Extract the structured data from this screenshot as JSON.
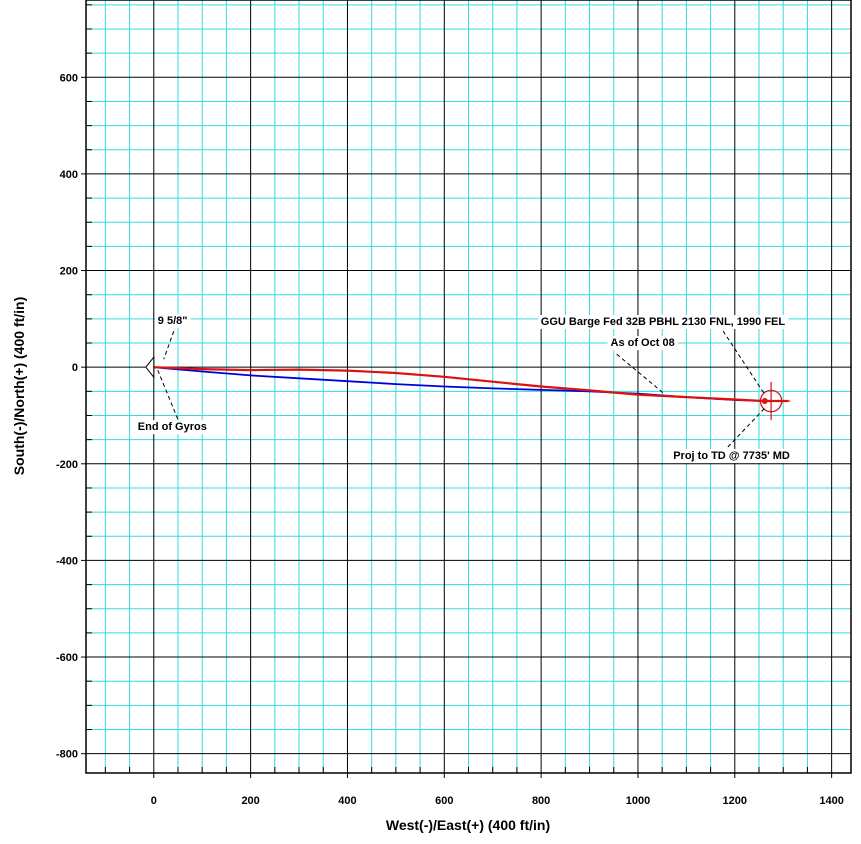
{
  "chart_data": {
    "type": "line",
    "title": "",
    "xlabel": "West(-)/East(+) (400 ft/in)",
    "ylabel": "South(-)/North(+) (400 ft/in)",
    "xlim": [
      -140,
      1440
    ],
    "ylim": [
      -840,
      760
    ],
    "major_step": 200,
    "minor_step": 50,
    "x_ticks": [
      0,
      200,
      400,
      600,
      800,
      1000,
      1200,
      1400
    ],
    "y_ticks": [
      -800,
      -600,
      -400,
      -200,
      0,
      200,
      400,
      600
    ],
    "grid": true,
    "colors": {
      "minor_grid": "#33dddd",
      "major_grid": "#000000",
      "actual_path": "#0000dd",
      "planned_path": "#dd1111",
      "target": "#dd1111"
    },
    "series": [
      {
        "color": "#0000dd",
        "x": [
          0,
          100,
          200,
          300,
          400,
          500,
          600,
          700,
          800,
          900,
          1000,
          1100,
          1200,
          1260
        ],
        "y": [
          0,
          -9,
          -17,
          -23,
          -29,
          -35,
          -40,
          -44,
          -47,
          -50,
          -55,
          -62,
          -68,
          -70
        ]
      },
      {
        "color": "#dd1111",
        "x": [
          0,
          50,
          100,
          200,
          300,
          400,
          500,
          600,
          700,
          800,
          900,
          1000,
          1100,
          1200,
          1260,
          1310
        ],
        "y": [
          0,
          -2,
          -4,
          -6,
          -5,
          -7,
          -12,
          -20,
          -30,
          -40,
          -48,
          -57,
          -62,
          -67,
          -70,
          -70
        ]
      }
    ],
    "target": {
      "x": 1275,
      "y": -70,
      "radius": 22
    },
    "annotations": [
      {
        "text": "9 5/8\"",
        "x": 0,
        "y": 0
      },
      {
        "text": "End of Gyros",
        "x": 20,
        "y": -2
      },
      {
        "text": "GGU Barge Fed 32B PBHL 2130 FNL, 1990 FEL",
        "x": 1275,
        "y": -70
      },
      {
        "text": "As of Oct 08",
        "x": 1080,
        "y": -60
      },
      {
        "text": "Proj to TD @ 7735' MD",
        "x": 1260,
        "y": -70
      }
    ]
  }
}
